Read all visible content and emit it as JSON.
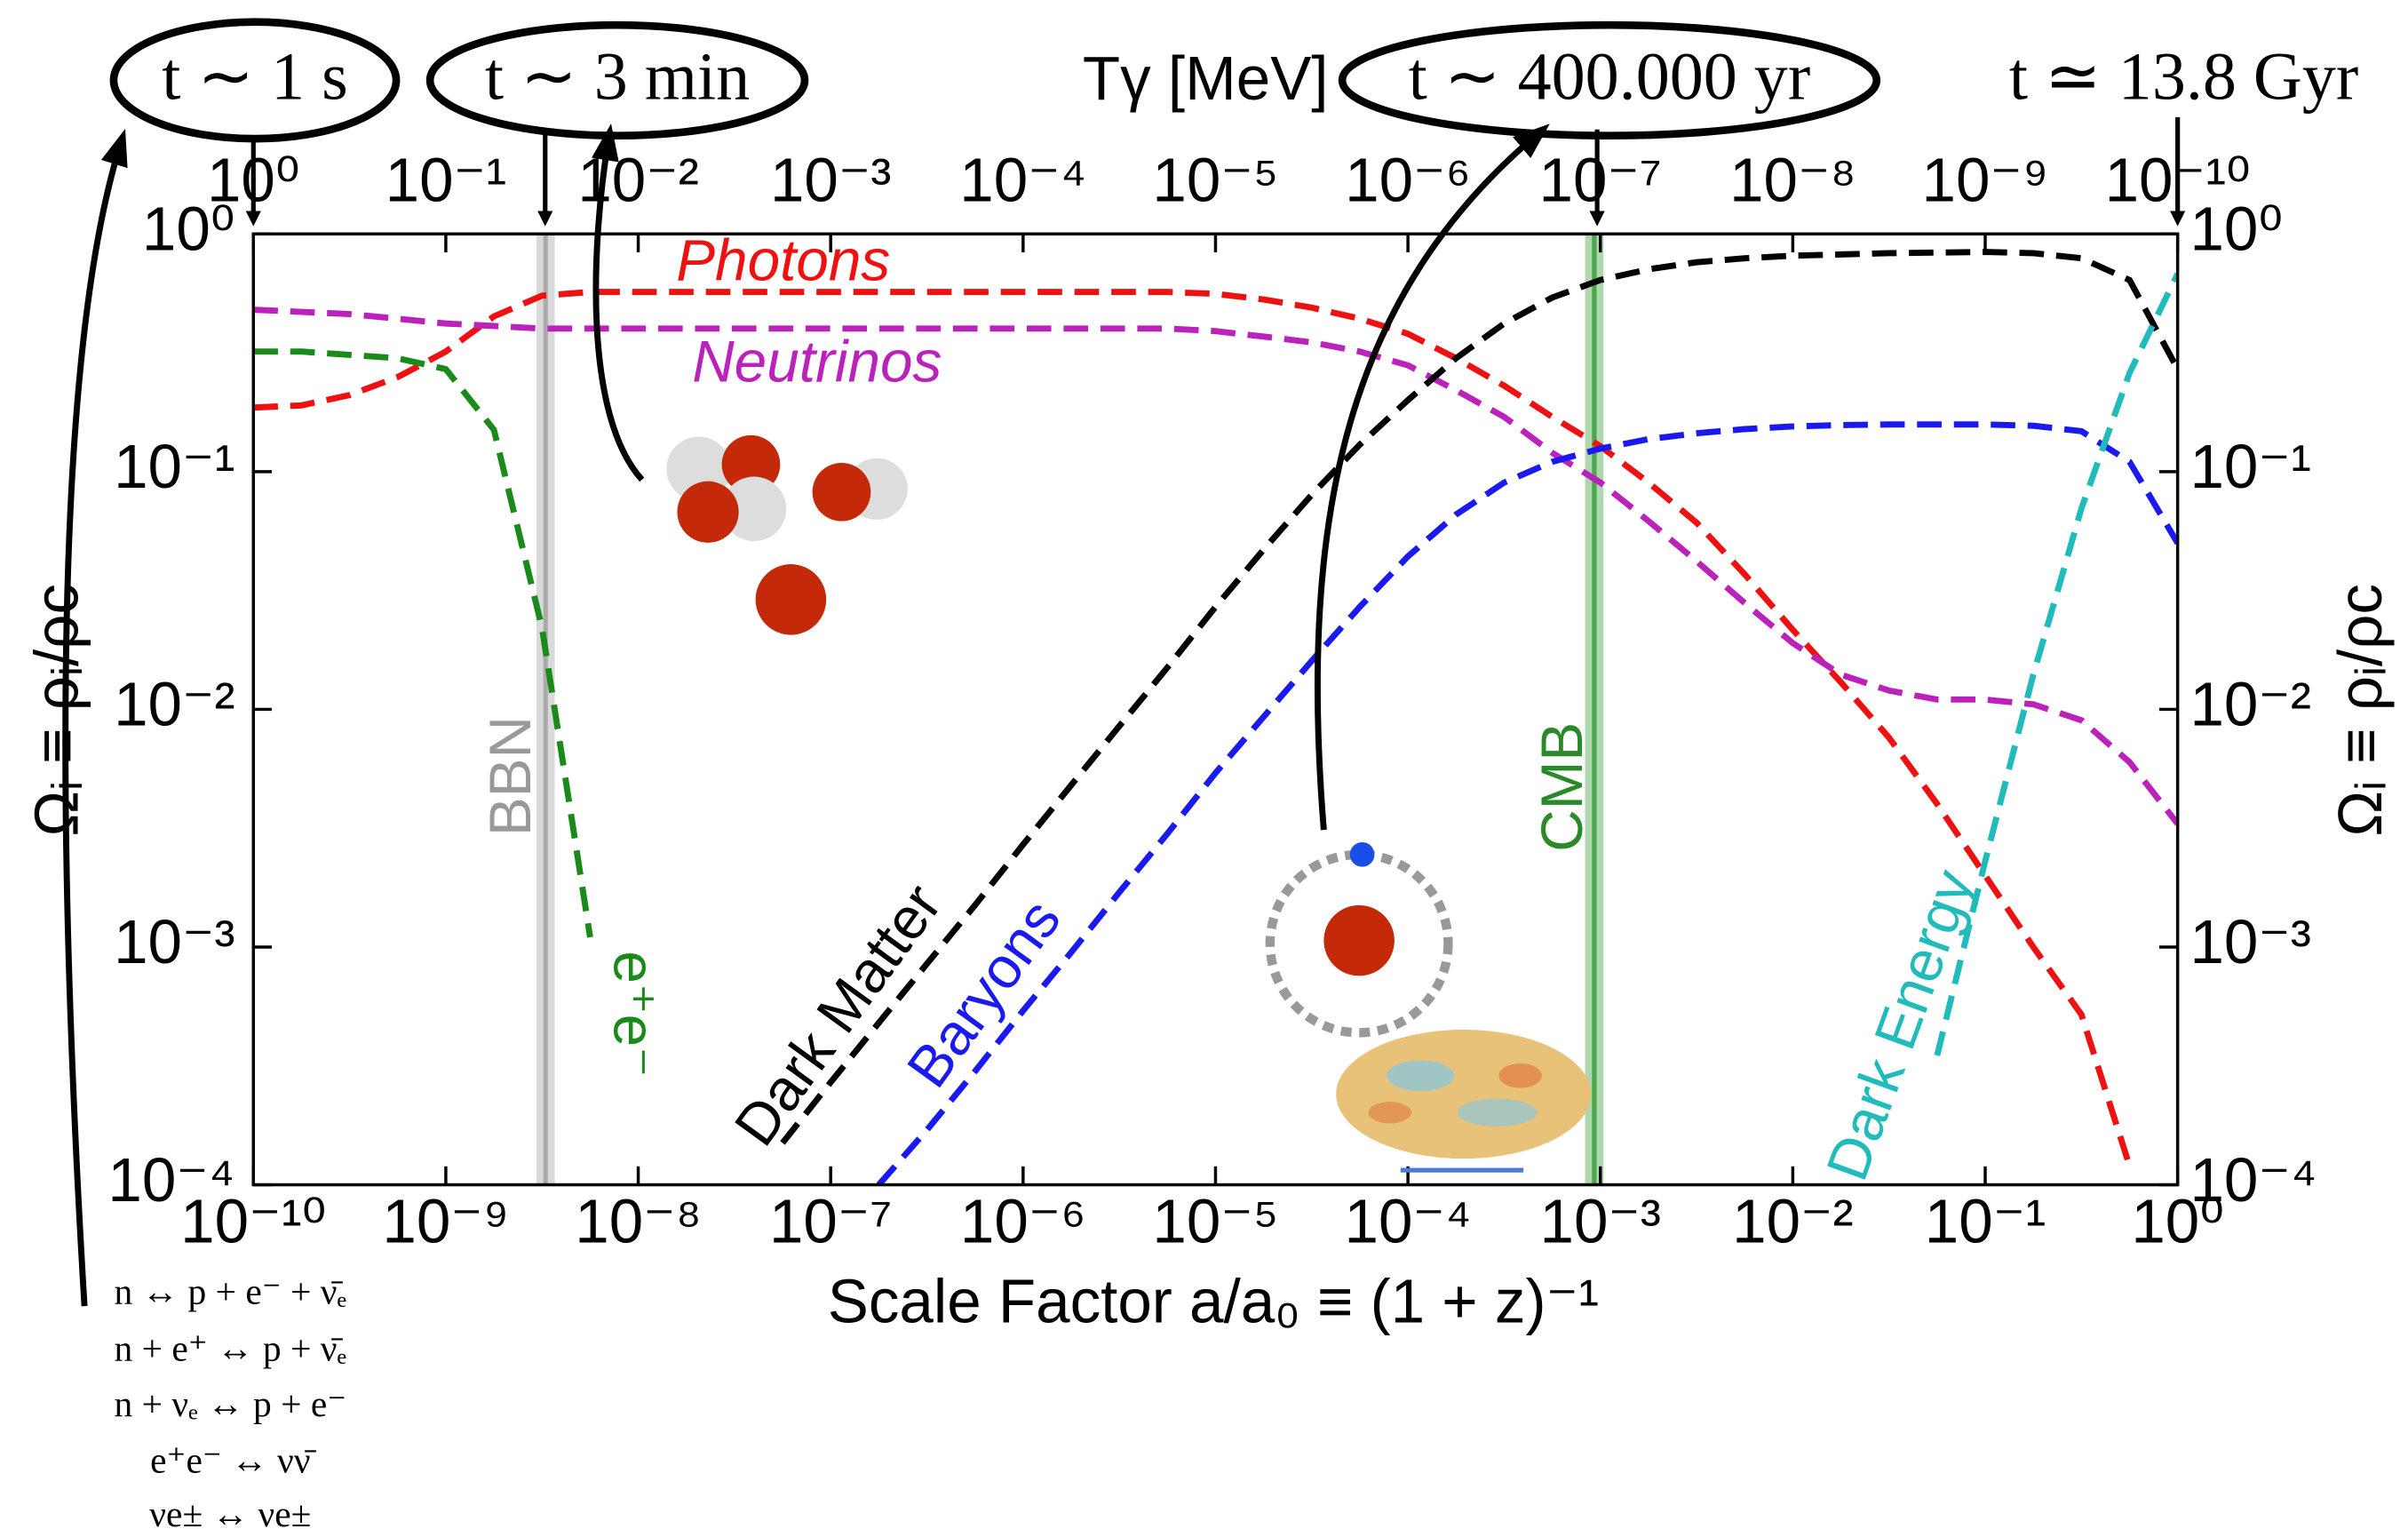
{
  "chart_data": {
    "type": "line",
    "log_x": true,
    "log_y": true,
    "dashed": true,
    "x_label": "Scale Factor a/a₀ ≡ (1 + z)⁻¹",
    "y_label": "Ωᵢ ≡ ρᵢ/ρc",
    "x2_label": "Tγ [MeV]",
    "time_labels": [
      "t ∼ 1 s",
      "t ∼ 3 min",
      "t ∼ 400.000 yr",
      "t ≃ 13.8 Gyr"
    ],
    "reactions": [
      "n ↔ p + e⁻ + ν̄ₑ",
      "n + e⁺ ↔ p + ν̄ₑ",
      "n + νₑ ↔ p + e⁻",
      "e⁺e⁻ ↔ νν̄",
      "νe± ↔ νe±"
    ],
    "xlim": [
      1e-10,
      1
    ],
    "ylim": [
      0.0001,
      1
    ],
    "x2lim": [
      1,
      1e-10
    ],
    "xticks": [
      {
        "value": 1e-10,
        "label": "10⁻¹⁰"
      },
      {
        "value": 1e-09,
        "label": "10⁻⁹"
      },
      {
        "value": 1e-08,
        "label": "10⁻⁸"
      },
      {
        "value": 1e-07,
        "label": "10⁻⁷"
      },
      {
        "value": 1e-06,
        "label": "10⁻⁶"
      },
      {
        "value": 1e-05,
        "label": "10⁻⁵"
      },
      {
        "value": 0.0001,
        "label": "10⁻⁴"
      },
      {
        "value": 0.001,
        "label": "10⁻³"
      },
      {
        "value": 0.01,
        "label": "10⁻²"
      },
      {
        "value": 0.1,
        "label": "10⁻¹"
      },
      {
        "value": 1,
        "label": "10⁰"
      }
    ],
    "x2ticks": [
      {
        "value": 1,
        "label": "10⁰"
      },
      {
        "value": 0.1,
        "label": "10⁻¹"
      },
      {
        "value": 0.01,
        "label": "10⁻²"
      },
      {
        "value": 0.001,
        "label": "10⁻³"
      },
      {
        "value": 0.0001,
        "label": "10⁻⁴"
      },
      {
        "value": 1e-05,
        "label": "10⁻⁵"
      },
      {
        "value": 1e-06,
        "label": "10⁻⁶"
      },
      {
        "value": 1e-07,
        "label": "10⁻⁷"
      },
      {
        "value": 1e-08,
        "label": "10⁻⁸"
      },
      {
        "value": 1e-09,
        "label": "10⁻⁹"
      },
      {
        "value": 1e-10,
        "label": "10⁻¹⁰"
      }
    ],
    "yticks": [
      {
        "value": 1,
        "label": "10⁰"
      },
      {
        "value": 0.1,
        "label": "10⁻¹"
      },
      {
        "value": 0.01,
        "label": "10⁻²"
      },
      {
        "value": 0.001,
        "label": "10⁻³"
      },
      {
        "value": 0.0001,
        "label": "10⁻⁴"
      }
    ],
    "vlines": [
      {
        "name": "BBN",
        "x": 3.3e-09,
        "color": "#aaaaaa"
      },
      {
        "name": "CMB",
        "x": 0.00093,
        "color": "#4ca64c"
      }
    ],
    "x": [
      1e-10,
      1.778e-10,
      3.162e-10,
      5.623e-10,
      1e-09,
      1.778e-09,
      3.162e-09,
      5.623e-09,
      1e-08,
      1.778e-08,
      3.162e-08,
      5.623e-08,
      1e-07,
      1.778e-07,
      3.162e-07,
      5.623e-07,
      1e-06,
      1.778e-06,
      3.162e-06,
      5.623e-06,
      1e-05,
      1.778e-05,
      3.162e-05,
      5.623e-05,
      0.0001,
      0.0001778,
      0.0003162,
      0.0005623,
      0.001,
      0.001778,
      0.003162,
      0.005623,
      0.01,
      0.01778,
      0.03162,
      0.05623,
      0.1,
      0.1778,
      0.3162,
      0.5623,
      1
    ],
    "series": [
      {
        "name": "Photons",
        "color": "#ee1111",
        "values": [
          0.186,
          0.19,
          0.21,
          0.25,
          0.32,
          0.45,
          0.55,
          0.57,
          0.57,
          0.57,
          0.57,
          0.57,
          0.57,
          0.57,
          0.57,
          0.57,
          0.57,
          0.57,
          0.57,
          0.57,
          0.56,
          0.53,
          0.49,
          0.44,
          0.38,
          0.3,
          0.23,
          0.17,
          0.128,
          0.09,
          0.061,
          0.037,
          0.0216,
          0.013,
          0.0076,
          0.004,
          0.002,
          0.001,
          0.00052,
          0.00012,
          null
        ]
      },
      {
        "name": "Neutrinos",
        "color": "#bb22bb",
        "values": [
          0.48,
          0.47,
          0.46,
          0.44,
          0.42,
          0.41,
          0.4,
          0.4,
          0.4,
          0.4,
          0.4,
          0.4,
          0.4,
          0.4,
          0.4,
          0.4,
          0.4,
          0.4,
          0.4,
          0.4,
          0.39,
          0.37,
          0.35,
          0.32,
          0.28,
          0.22,
          0.17,
          0.12,
          0.09,
          0.062,
          0.042,
          0.028,
          0.019,
          0.014,
          0.012,
          0.011,
          0.011,
          0.0105,
          0.009,
          0.006,
          0.0033
        ]
      },
      {
        "name": "e⁺e⁻",
        "color": "#1a8a1a",
        "values": [
          0.32,
          0.32,
          0.31,
          0.3,
          0.27,
          0.15,
          0.022,
          0.0011,
          null,
          null,
          null,
          null,
          null,
          null,
          null,
          null,
          null,
          null,
          null,
          null,
          null,
          null,
          null,
          null,
          null,
          null,
          null,
          null,
          null,
          null,
          null,
          null,
          null,
          null,
          null,
          null,
          null,
          null,
          null,
          null,
          null
        ]
      },
      {
        "name": "Dark Matter",
        "color": "#000000",
        "values": [
          null,
          null,
          null,
          null,
          null,
          null,
          null,
          null,
          null,
          null,
          null,
          0.00015,
          0.00027,
          0.00048,
          0.00085,
          0.0015,
          0.0027,
          0.0048,
          0.0085,
          0.015,
          0.027,
          0.047,
          0.08,
          0.13,
          0.2,
          0.3,
          0.42,
          0.54,
          0.64,
          0.71,
          0.76,
          0.79,
          0.81,
          0.82,
          0.83,
          0.835,
          0.84,
          0.83,
          0.79,
          0.64,
          0.27
        ]
      },
      {
        "name": "Baryons",
        "color": "#1a1aee",
        "values": [
          null,
          null,
          null,
          null,
          null,
          null,
          null,
          null,
          null,
          null,
          null,
          null,
          null,
          0.0001,
          0.00017,
          0.0003,
          0.00054,
          0.00095,
          0.0017,
          0.003,
          0.0054,
          0.0093,
          0.016,
          0.027,
          0.044,
          0.066,
          0.09,
          0.11,
          0.125,
          0.137,
          0.145,
          0.151,
          0.155,
          0.157,
          0.158,
          0.158,
          0.158,
          0.156,
          0.148,
          0.11,
          0.05
        ]
      },
      {
        "name": "Dark Energy",
        "color": "#22bbbb",
        "values": [
          null,
          null,
          null,
          null,
          null,
          null,
          null,
          null,
          null,
          null,
          null,
          null,
          null,
          null,
          null,
          null,
          null,
          null,
          null,
          null,
          null,
          null,
          null,
          null,
          null,
          null,
          null,
          null,
          null,
          null,
          null,
          null,
          null,
          null,
          null,
          0.00035,
          0.0023,
          0.014,
          0.07,
          0.26,
          0.68
        ]
      }
    ]
  }
}
